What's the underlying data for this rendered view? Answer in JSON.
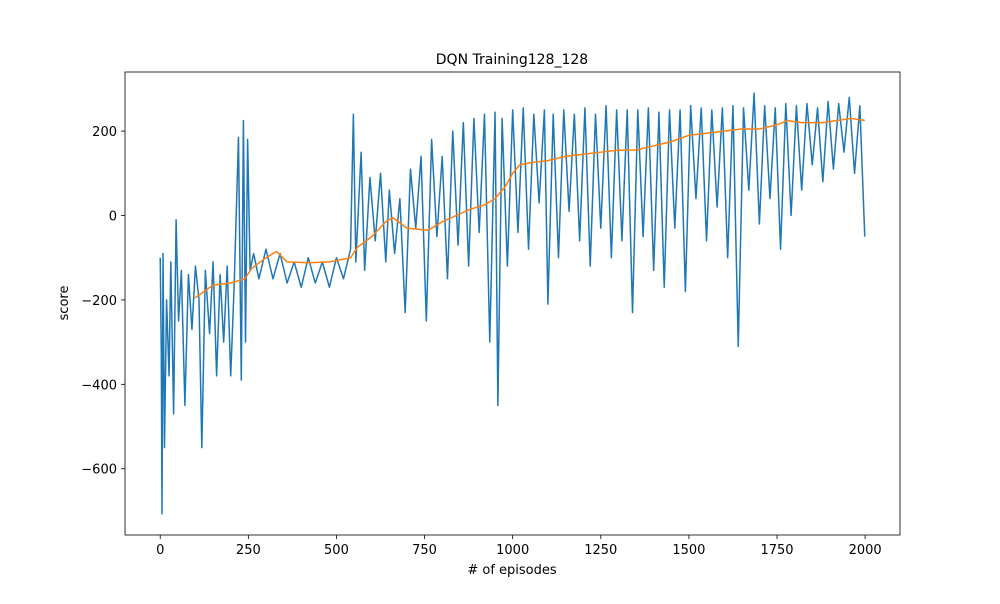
{
  "chart_data": {
    "type": "line",
    "title": "DQN Training128_128",
    "x_label": "# of episodes",
    "y_label": "score",
    "xlim": [
      -99.95,
      2098.95
    ],
    "ylim": [
      -757,
      340
    ],
    "xticks": [
      0,
      250,
      500,
      750,
      1000,
      1250,
      1500,
      1750,
      2000
    ],
    "yticks": [
      -600,
      -400,
      -200,
      0,
      200
    ],
    "series": [
      {
        "color": "#1f77b4",
        "x": [
          0,
          3,
          5,
          8,
          12,
          18,
          25,
          30,
          38,
          45,
          52,
          60,
          70,
          80,
          90,
          100,
          110,
          118,
          128,
          140,
          150,
          160,
          170,
          180,
          190,
          200,
          210,
          222,
          230,
          236,
          242,
          248,
          255,
          265,
          280,
          300,
          320,
          340,
          360,
          380,
          400,
          420,
          440,
          460,
          480,
          500,
          520,
          540,
          548,
          555,
          570,
          580,
          595,
          610,
          625,
          640,
          650,
          665,
          680,
          695,
          710,
          725,
          740,
          755,
          770,
          785,
          800,
          815,
          830,
          845,
          860,
          875,
          890,
          905,
          920,
          935,
          950,
          958,
          970,
          985,
          1000,
          1015,
          1030,
          1045,
          1060,
          1075,
          1090,
          1100,
          1115,
          1130,
          1145,
          1160,
          1175,
          1190,
          1205,
          1220,
          1235,
          1250,
          1265,
          1280,
          1295,
          1310,
          1325,
          1340,
          1355,
          1370,
          1385,
          1400,
          1415,
          1430,
          1445,
          1460,
          1475,
          1490,
          1505,
          1520,
          1535,
          1550,
          1565,
          1580,
          1595,
          1610,
          1625,
          1640,
          1655,
          1670,
          1685,
          1700,
          1715,
          1730,
          1745,
          1760,
          1775,
          1790,
          1805,
          1820,
          1835,
          1850,
          1865,
          1880,
          1895,
          1910,
          1925,
          1940,
          1955,
          1970,
          1985,
          1999
        ],
        "values": [
          -100,
          -320,
          -707,
          -90,
          -550,
          -200,
          -380,
          -110,
          -470,
          -10,
          -250,
          -130,
          -450,
          -140,
          -270,
          -120,
          -200,
          -550,
          -130,
          -280,
          -110,
          -380,
          -140,
          -300,
          -120,
          -380,
          -160,
          185,
          -390,
          225,
          -300,
          180,
          -130,
          -90,
          -150,
          -80,
          -150,
          -90,
          -160,
          -110,
          -170,
          -100,
          -160,
          -110,
          -170,
          -100,
          -150,
          -80,
          240,
          -110,
          150,
          -130,
          90,
          -60,
          100,
          -110,
          60,
          -90,
          40,
          -230,
          110,
          -30,
          140,
          -250,
          180,
          -50,
          140,
          -150,
          200,
          -70,
          220,
          -120,
          230,
          -40,
          240,
          -300,
          245,
          -450,
          230,
          -120,
          250,
          -40,
          255,
          -80,
          240,
          30,
          250,
          -210,
          240,
          -100,
          250,
          10,
          240,
          -60,
          255,
          -120,
          240,
          -30,
          260,
          -100,
          250,
          -60,
          250,
          -230,
          250,
          -50,
          255,
          -130,
          245,
          -170,
          250,
          -30,
          250,
          -180,
          260,
          40,
          255,
          -60,
          250,
          20,
          255,
          -100,
          260,
          -310,
          255,
          60,
          290,
          -20,
          260,
          40,
          255,
          -80,
          265,
          0,
          260,
          60,
          265,
          120,
          255,
          80,
          270,
          110,
          265,
          150,
          280,
          100,
          260,
          -50
        ]
      },
      {
        "color": "#ff7f0e",
        "x": [
          99,
          150,
          200,
          240,
          260,
          300,
          330,
          360,
          420,
          480,
          540,
          560,
          600,
          640,
          660,
          700,
          760,
          800,
          840,
          880,
          920,
          950,
          980,
          1000,
          1020,
          1050,
          1100,
          1150,
          1200,
          1250,
          1300,
          1350,
          1400,
          1450,
          1500,
          1550,
          1600,
          1650,
          1700,
          1750,
          1780,
          1820,
          1880,
          1920,
          1960,
          1999
        ],
        "values": [
          -195,
          -165,
          -160,
          -150,
          -125,
          -100,
          -85,
          -110,
          -112,
          -110,
          -100,
          -75,
          -50,
          -15,
          -5,
          -30,
          -35,
          -15,
          0,
          15,
          25,
          40,
          70,
          100,
          120,
          125,
          130,
          140,
          145,
          150,
          155,
          155,
          165,
          175,
          190,
          195,
          200,
          205,
          205,
          215,
          225,
          220,
          220,
          225,
          230,
          225
        ]
      }
    ]
  }
}
